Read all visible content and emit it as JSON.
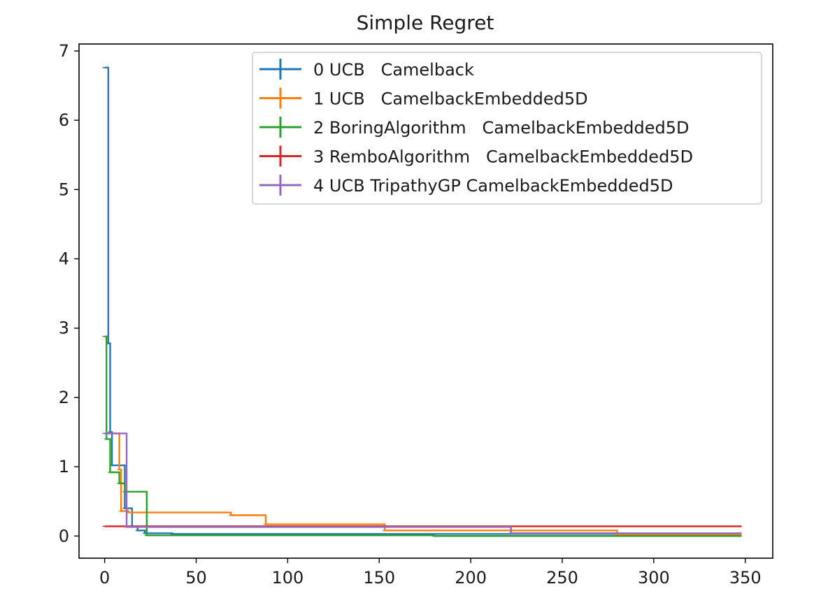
{
  "chart_data": {
    "type": "line",
    "title": "Simple Regret",
    "xlabel": "",
    "ylabel": "",
    "xlim": [
      -14,
      365
    ],
    "ylim": [
      -0.32,
      7.1
    ],
    "xticks": [
      0,
      50,
      100,
      150,
      200,
      250,
      300,
      350
    ],
    "yticks": [
      0,
      1,
      2,
      3,
      4,
      5,
      6,
      7
    ],
    "grid": false,
    "legend": "top-right",
    "series": [
      {
        "name": "0 UCB   Camelback",
        "color": "#1f77b4",
        "step": true,
        "points": [
          [
            0,
            6.76
          ],
          [
            2,
            6.76
          ],
          [
            2,
            2.78
          ],
          [
            3,
            2.78
          ],
          [
            3,
            1.5
          ],
          [
            4,
            1.5
          ],
          [
            4,
            1.02
          ],
          [
            11,
            1.02
          ],
          [
            11,
            0.4
          ],
          [
            15,
            0.4
          ],
          [
            15,
            0.14
          ],
          [
            18,
            0.14
          ],
          [
            18,
            0.08
          ],
          [
            22,
            0.08
          ],
          [
            22,
            0.04
          ],
          [
            37,
            0.04
          ],
          [
            37,
            0.03
          ],
          [
            348,
            0.03
          ]
        ]
      },
      {
        "name": "1 UCB   CamelbackEmbedded5D",
        "color": "#ff7f0e",
        "step": true,
        "points": [
          [
            0,
            1.48
          ],
          [
            8,
            1.48
          ],
          [
            8,
            0.96
          ],
          [
            9,
            0.96
          ],
          [
            9,
            0.36
          ],
          [
            13,
            0.36
          ],
          [
            13,
            0.34
          ],
          [
            69,
            0.34
          ],
          [
            69,
            0.3
          ],
          [
            88,
            0.3
          ],
          [
            88,
            0.17
          ],
          [
            153,
            0.17
          ],
          [
            153,
            0.08
          ],
          [
            280,
            0.08
          ],
          [
            280,
            0.02
          ],
          [
            348,
            0.02
          ]
        ]
      },
      {
        "name": "2 BoringAlgorithm   CamelbackEmbedded5D",
        "color": "#2ca02c",
        "step": true,
        "points": [
          [
            0,
            2.88
          ],
          [
            1,
            2.88
          ],
          [
            1,
            1.4
          ],
          [
            3,
            1.4
          ],
          [
            3,
            0.92
          ],
          [
            8,
            0.92
          ],
          [
            8,
            0.76
          ],
          [
            11,
            0.76
          ],
          [
            11,
            0.64
          ],
          [
            23,
            0.64
          ],
          [
            23,
            0.01
          ],
          [
            180,
            0.01
          ],
          [
            180,
            0.0
          ],
          [
            348,
            0.0
          ]
        ]
      },
      {
        "name": "3 RemboAlgorithm   CamelbackEmbedded5D",
        "color": "#d62728",
        "step": true,
        "points": [
          [
            0,
            0.14
          ],
          [
            348,
            0.14
          ]
        ]
      },
      {
        "name": "4 UCB TripathyGP CamelbackEmbedded5D",
        "color": "#9467bd",
        "step": true,
        "points": [
          [
            0,
            1.48
          ],
          [
            12,
            1.48
          ],
          [
            12,
            0.13
          ],
          [
            222,
            0.13
          ],
          [
            222,
            0.04
          ],
          [
            348,
            0.04
          ]
        ]
      }
    ]
  }
}
